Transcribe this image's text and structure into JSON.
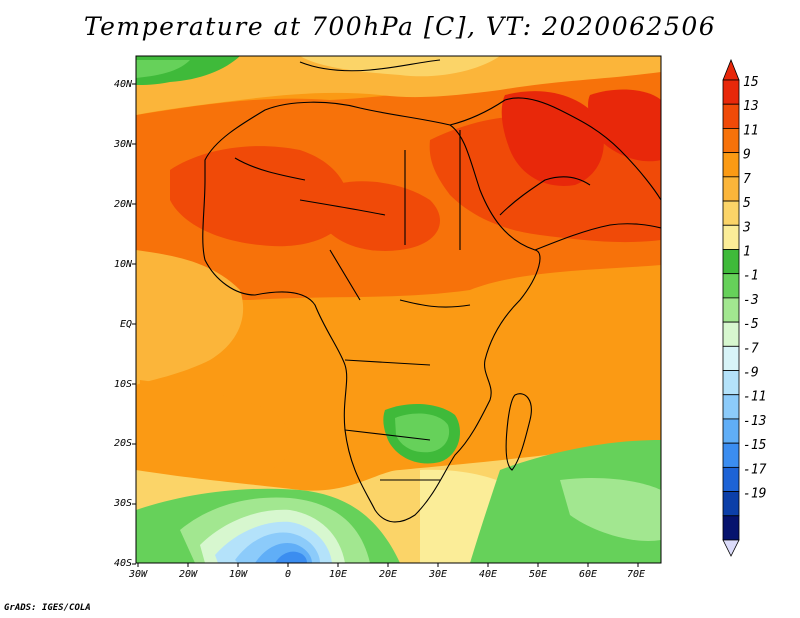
{
  "title": "Temperature at 700hPa [C], VT: 2020062506",
  "footer": "GrADS: IGES/COLA",
  "lat_labels": [
    "40N",
    "30N",
    "20N",
    "10N",
    "EQ",
    "10S",
    "20S",
    "30S",
    "40S"
  ],
  "lon_labels": [
    "30W",
    "20W",
    "10W",
    "0",
    "10E",
    "20E",
    "30E",
    "40E",
    "50E",
    "60E",
    "70E"
  ],
  "colorbar": {
    "labels": [
      "15",
      "13",
      "11",
      "9",
      "7",
      "5",
      "3",
      "1",
      "-1",
      "-3",
      "-5",
      "-7",
      "-9",
      "-11",
      "-13",
      "-15",
      "-17",
      "-19"
    ],
    "colors": [
      "#e8280a",
      "#f04a08",
      "#f7720a",
      "#fb9a14",
      "#fbb53a",
      "#fbd468",
      "#fbed98",
      "#3fba3a",
      "#66d15a",
      "#a2e790",
      "#d7f7cf",
      "#d8f4f8",
      "#b4e2fa",
      "#8ccbfa",
      "#60aef7",
      "#3b8df0",
      "#1d63d6",
      "#0c3fa8",
      "#06136e"
    ]
  }
}
